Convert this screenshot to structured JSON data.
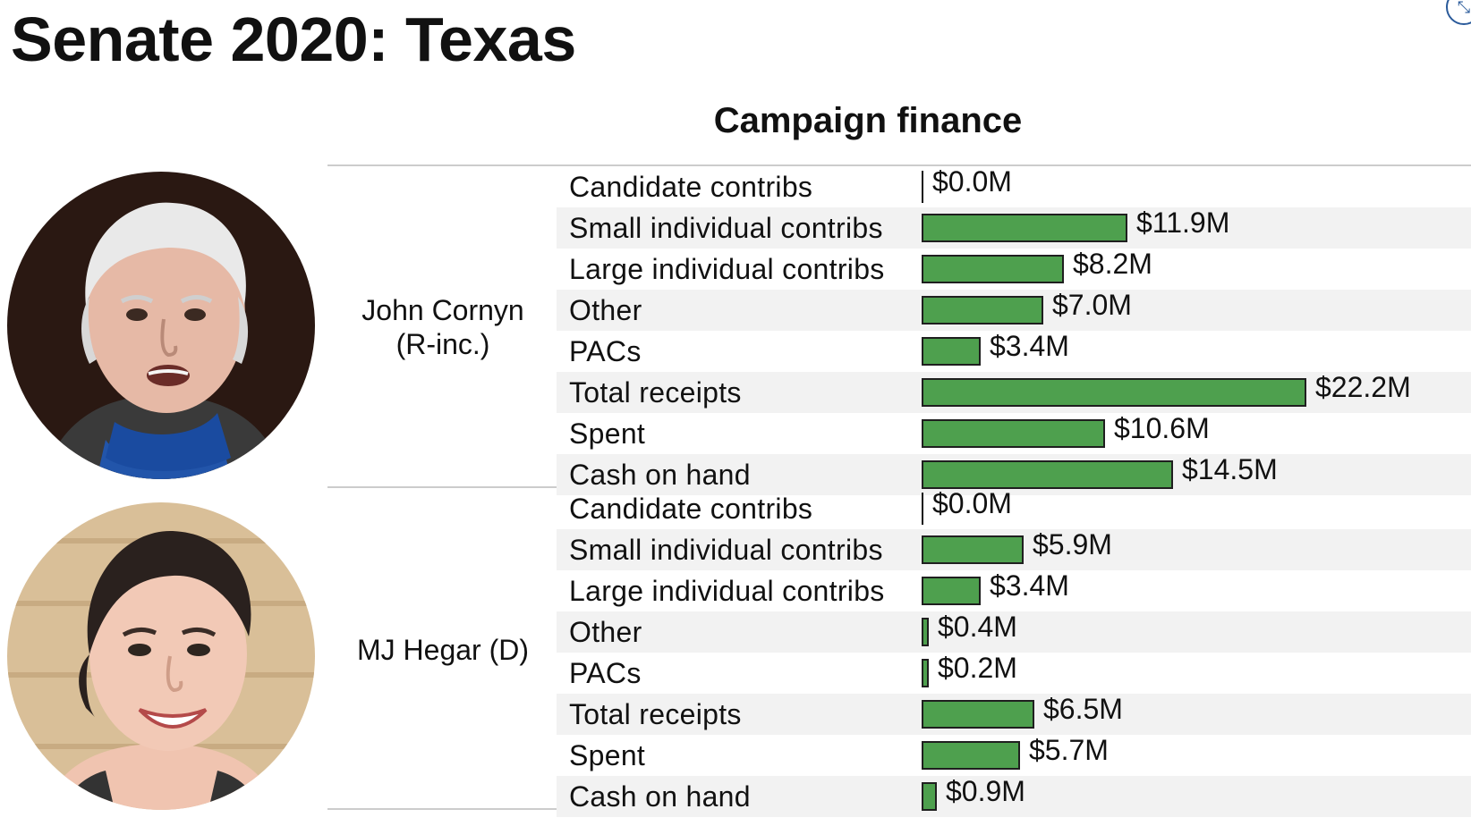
{
  "page_title": "Senate 2020: Texas",
  "chart_data": {
    "type": "bar",
    "orientation": "horizontal",
    "title": "Campaign finance",
    "unit": "$M",
    "categories": [
      "Candidate contribs",
      "Small individual contribs",
      "Large individual contribs",
      "Other",
      "PACs",
      "Total receipts",
      "Spent",
      "Cash on hand"
    ],
    "xlim": [
      0,
      22.2
    ],
    "grid": false,
    "groups": [
      {
        "name": "John Cornyn\n(R-inc.)",
        "values": [
          0.0,
          11.9,
          8.2,
          7.0,
          3.4,
          22.2,
          10.6,
          14.5
        ],
        "value_labels": [
          "$0.0M",
          "$11.9M",
          "$8.2M",
          "$7.0M",
          "$3.4M",
          "$22.2M",
          "$10.6M",
          "$14.5M"
        ]
      },
      {
        "name": "MJ Hegar (D)",
        "values": [
          0.0,
          5.9,
          3.4,
          0.4,
          0.2,
          6.5,
          5.7,
          0.9
        ],
        "value_labels": [
          "$0.0M",
          "$5.9M",
          "$3.4M",
          "$0.4M",
          "$0.2M",
          "$6.5M",
          "$5.7M",
          "$0.9M"
        ]
      }
    ],
    "bar_color": "#4ea04e"
  },
  "icons": {
    "corner": "collapse-icon"
  }
}
